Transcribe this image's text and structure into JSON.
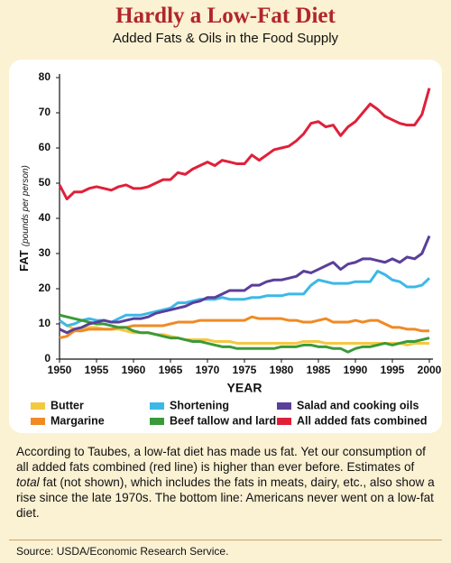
{
  "chart_data": {
    "type": "line",
    "title": "Hardly a Low-Fat Diet",
    "subtitle": "Added Fats & Oils in the Food Supply",
    "xlabel": "YEAR",
    "ylabel": "FAT",
    "ylabel_unit": "(pounds per person)",
    "x": [
      1950,
      1951,
      1952,
      1953,
      1954,
      1955,
      1956,
      1957,
      1958,
      1959,
      1960,
      1961,
      1962,
      1963,
      1964,
      1965,
      1966,
      1967,
      1968,
      1969,
      1970,
      1971,
      1972,
      1973,
      1974,
      1975,
      1976,
      1977,
      1978,
      1979,
      1980,
      1981,
      1982,
      1983,
      1984,
      1985,
      1986,
      1987,
      1988,
      1989,
      1990,
      1991,
      1992,
      1993,
      1994,
      1995,
      1996,
      1997,
      1998,
      1999,
      2000
    ],
    "xlim": [
      1950,
      2000
    ],
    "xticks": [
      1950,
      1955,
      1960,
      1965,
      1970,
      1975,
      1980,
      1985,
      1990,
      1995,
      2000
    ],
    "ylim": [
      0,
      80
    ],
    "yticks": [
      0,
      10,
      20,
      30,
      40,
      50,
      60,
      70,
      80
    ],
    "series": [
      {
        "name": "Butter",
        "color": "#f5c842",
        "values": [
          11,
          9.5,
          8.5,
          8.5,
          9,
          9,
          8.5,
          8.5,
          8.5,
          8,
          7.5,
          7.5,
          7.5,
          7,
          7,
          6.5,
          6,
          5.5,
          5.5,
          5.5,
          5.5,
          5,
          5,
          5,
          4.5,
          4.5,
          4.5,
          4.5,
          4.5,
          4.5,
          4.5,
          4.5,
          4.5,
          5,
          5,
          5,
          4.5,
          4.5,
          4.5,
          4.5,
          4.5,
          4.5,
          4.5,
          4.5,
          4.5,
          4.5,
          4.5,
          4,
          4.5,
          4.5,
          4.5
        ]
      },
      {
        "name": "Margarine",
        "color": "#f08a24",
        "values": [
          6,
          6.5,
          8,
          8,
          8.5,
          8.5,
          8.5,
          8.5,
          9,
          9,
          9.5,
          9.5,
          9.5,
          9.5,
          9.5,
          10,
          10.5,
          10.5,
          10.5,
          11,
          11,
          11,
          11,
          11,
          11,
          11,
          12,
          11.5,
          11.5,
          11.5,
          11.5,
          11,
          11,
          10.5,
          10.5,
          11,
          11.5,
          10.5,
          10.5,
          10.5,
          11,
          10.5,
          11,
          11,
          10,
          9,
          9,
          8.5,
          8.5,
          8,
          8
        ]
      },
      {
        "name": "Shortening",
        "color": "#3cb8e8",
        "values": [
          11,
          9.5,
          10,
          11,
          11.5,
          11,
          11,
          10.5,
          11.5,
          12.5,
          12.5,
          12.5,
          13,
          13.5,
          14,
          14.5,
          16,
          16,
          16.5,
          17,
          17,
          17,
          17.5,
          17,
          17,
          17,
          17.5,
          17.5,
          18,
          18,
          18,
          18.5,
          18.5,
          18.5,
          21,
          22.5,
          22,
          21.5,
          21.5,
          21.5,
          22,
          22,
          22,
          25,
          24,
          22.5,
          22,
          20.5,
          20.5,
          21,
          23
        ]
      },
      {
        "name": "Beef tallow and lard",
        "color": "#3a9a3a",
        "values": [
          12.5,
          12,
          11.5,
          11,
          10.5,
          10,
          10,
          9.5,
          9,
          9,
          8,
          7.5,
          7.5,
          7,
          6.5,
          6,
          6,
          5.5,
          5,
          5,
          4.5,
          4,
          3.5,
          3.5,
          3,
          3,
          3,
          3,
          3,
          3,
          3.5,
          3.5,
          3.5,
          4,
          4,
          3.5,
          3.5,
          3,
          3,
          2,
          3,
          3.5,
          3.5,
          4,
          4.5,
          4,
          4.5,
          5,
          5,
          5.5,
          6
        ]
      },
      {
        "name": "Salad and cooking oils",
        "color": "#5a3f9a",
        "values": [
          8.5,
          7.5,
          8.5,
          9,
          10,
          10.5,
          11,
          10.5,
          10.5,
          11,
          11.5,
          11.5,
          12,
          13,
          13.5,
          14,
          14.5,
          15,
          16,
          16.5,
          17.5,
          17.5,
          18.5,
          19.5,
          19.5,
          19.5,
          21,
          21,
          22,
          22.5,
          22.5,
          23,
          23.5,
          25,
          24.5,
          25.5,
          26.5,
          27.5,
          25.5,
          27,
          27.5,
          28.5,
          28.5,
          28,
          27.5,
          28.5,
          27.5,
          29,
          28.5,
          30,
          35
        ]
      },
      {
        "name": "All added fats combined",
        "color": "#e0203a",
        "values": [
          49.5,
          45.5,
          47.5,
          47.5,
          48.5,
          49,
          48.5,
          48,
          49,
          49.5,
          48.5,
          48.5,
          49,
          50,
          51,
          51,
          53,
          52.5,
          54,
          55,
          56,
          55,
          56.5,
          56,
          55.5,
          55.5,
          58,
          56.5,
          58,
          59.5,
          60,
          60.5,
          62,
          64,
          67,
          67.5,
          66,
          66.5,
          63.5,
          66,
          67.5,
          70,
          72.5,
          71,
          69,
          68,
          67,
          66.5,
          66.5,
          69.5,
          77
        ]
      }
    ]
  },
  "note_parts": [
    "According to Taubes, a low-fat diet has made us fat.  Yet our consumption of all added fats combined (red line) is higher than ever before.  Estimates of ",
    "total",
    " fat (not shown), which includes the fats in meats, dairy, etc., also show a rise since the late 1970s.  The bottom line: Americans never went on a low-fat diet."
  ],
  "source": "Source: USDA/Economic Research Service."
}
